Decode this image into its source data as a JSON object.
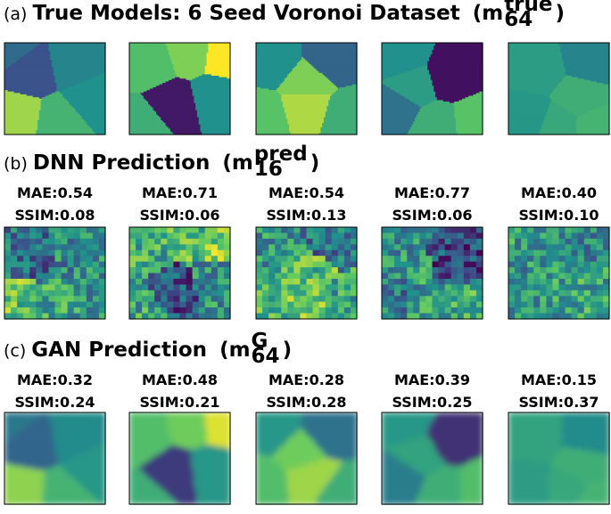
{
  "panels": [
    {
      "label": "(a)",
      "title": "True Models: 6 Seed Voronoi Dataset",
      "math": {
        "open": "(",
        "base": "m",
        "sub": "64",
        "sup": "true",
        "close": ")"
      }
    },
    {
      "label": "(b)",
      "title": "DNN Prediction",
      "math": {
        "open": "(",
        "base": "m",
        "sub": "16",
        "sup": "pred",
        "close": ")"
      },
      "mae": [
        "MAE:0.54",
        "MAE:0.71",
        "MAE:0.54",
        "MAE:0.77",
        "MAE:0.40"
      ],
      "ssim": [
        "SSIM:0.08",
        "SSIM:0.06",
        "SSIM:0.13",
        "SSIM:0.06",
        "SSIM:0.10"
      ]
    },
    {
      "label": "(c)",
      "title": "GAN Prediction",
      "math": {
        "open": "(",
        "base": "m",
        "sub": "64",
        "sup": "G",
        "close": ")"
      },
      "mae": [
        "MAE:0.32",
        "MAE:0.48",
        "MAE:0.28",
        "MAE:0.39",
        "MAE:0.15"
      ],
      "ssim": [
        "SSIM:0.24",
        "SSIM:0.21",
        "SSIM:0.28",
        "SSIM:0.25",
        "SSIM:0.37"
      ]
    }
  ]
}
